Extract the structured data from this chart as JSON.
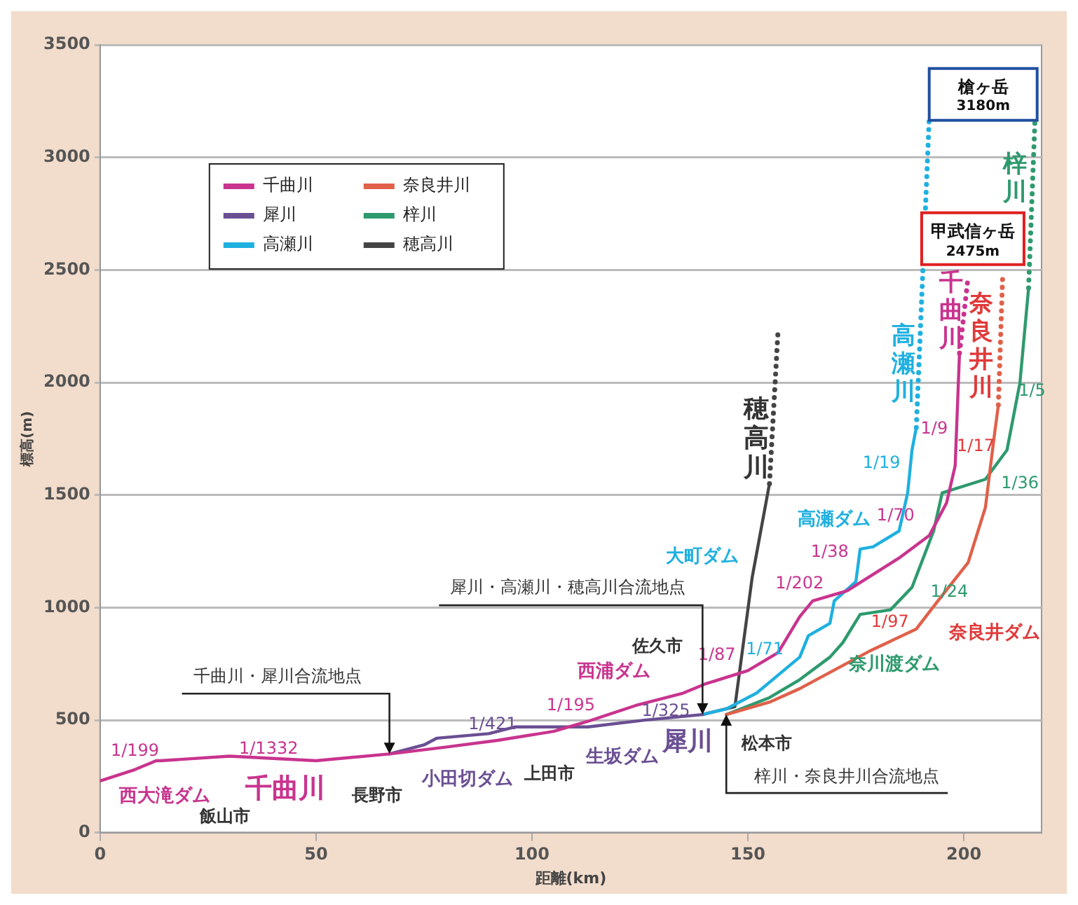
{
  "chart_data": {
    "type": "line",
    "xlabel": "距離(km)",
    "ylabel": "標高(m)",
    "xlim": [
      0,
      218
    ],
    "xticks": [
      0,
      50,
      100,
      150,
      200
    ],
    "ylim": [
      0,
      3500
    ],
    "yticks": [
      0,
      500,
      1000,
      1500,
      2000,
      2500,
      3000,
      3500
    ],
    "grid": "y",
    "legend": "top left",
    "marker": "none",
    "series": [
      {
        "name": "千曲川",
        "color": "#c8348e",
        "x": [
          0,
          8,
          13,
          14,
          30,
          50,
          67,
          80,
          92,
          105,
          113,
          124,
          135,
          140,
          150,
          157,
          162,
          165,
          173,
          185,
          192,
          196,
          198,
          199
        ],
        "values": [
          230,
          280,
          320,
          320,
          340,
          320,
          350,
          380,
          410,
          450,
          495,
          565,
          620,
          660,
          720,
          800,
          960,
          1030,
          1075,
          1220,
          1320,
          1465,
          1630,
          2130
        ]
      },
      {
        "name": "犀川",
        "color": "#6a4f93",
        "x": [
          67,
          75,
          78,
          90,
          96,
          113,
          126,
          139.5
        ],
        "values": [
          350,
          390,
          420,
          440,
          470,
          470,
          500,
          525
        ]
      },
      {
        "name": "高瀬川",
        "color": "#1fb0e0",
        "x": [
          139.5,
          145,
          152,
          162,
          164,
          169,
          170,
          175,
          176,
          179,
          185,
          187,
          188,
          189
        ],
        "values": [
          525,
          550,
          620,
          780,
          875,
          930,
          1030,
          1115,
          1260,
          1270,
          1340,
          1510,
          1700,
          1800
        ]
      },
      {
        "name": "奈良井川",
        "color": "#e0604a",
        "x": [
          145,
          155,
          162,
          178,
          189,
          194,
          201,
          205,
          207,
          208
        ],
        "values": [
          525,
          580,
          640,
          805,
          905,
          1030,
          1200,
          1445,
          1755,
          1900
        ]
      },
      {
        "name": "梓川",
        "color": "#2e9a6e",
        "x": [
          145,
          155,
          162,
          169,
          172,
          176,
          183,
          188,
          193,
          195,
          205,
          210,
          213,
          215
        ],
        "values": [
          525,
          600,
          680,
          780,
          845,
          970,
          990,
          1090,
          1340,
          1510,
          1570,
          1700,
          2000,
          2420
        ]
      },
      {
        "name": "穂高川",
        "color": "#444444",
        "x": [
          139.5,
          147,
          151,
          155
        ],
        "values": [
          525,
          560,
          1135,
          1550
        ]
      },
      {
        "color": "#c8348e",
        "line_style": "dotted",
        "x": [
          199,
          201
        ],
        "values": [
          2130,
          2470
        ]
      },
      {
        "color": "#1fb0e0",
        "line_style": "dotted",
        "x": [
          189,
          192
        ],
        "values": [
          1800,
          3180
        ]
      },
      {
        "color": "#e0604a",
        "line_style": "dotted",
        "x": [
          208,
          209
        ],
        "values": [
          1900,
          2475
        ]
      },
      {
        "color": "#2e9a6e",
        "line_style": "dotted",
        "x": [
          215,
          216.5
        ],
        "values": [
          2420,
          3180
        ]
      },
      {
        "color": "#444444",
        "line_style": "dotted",
        "x": [
          155,
          157
        ],
        "values": [
          1550,
          2235
        ]
      }
    ],
    "annotations": [
      "1/199",
      "西大滝ダム",
      "飯山市",
      "1/1332",
      "千曲川",
      "長野市",
      {
        "text": "千曲川・犀川合流地点",
        "x": 67,
        "y": 350
      },
      "1/421",
      "小田切ダム",
      "上田市",
      "1/195",
      "生坂ダム",
      "西浦ダム",
      "佐久市",
      "1/325",
      "犀川",
      "1/87",
      {
        "text": "犀川・高瀬川・穂高川合流地点",
        "x": 139.5,
        "y": 525
      },
      "松本市",
      {
        "text": "梓川・奈良井川合流地点",
        "x": 145,
        "y": 525
      },
      "大町ダム",
      "1/71",
      "1/202",
      "高瀬ダム",
      "1/38",
      "1/70",
      "1/19",
      "1/9",
      "1/17",
      "1/36",
      "1/5",
      "1/24",
      "1/97",
      "奈良井ダム",
      "奈川渡ダム",
      "穂高川",
      "高瀬川",
      "千曲川",
      "奈良井川",
      "梓川",
      "槍ヶ岳",
      "3180m",
      "甲武信ヶ岳",
      "2475m"
    ]
  }
}
